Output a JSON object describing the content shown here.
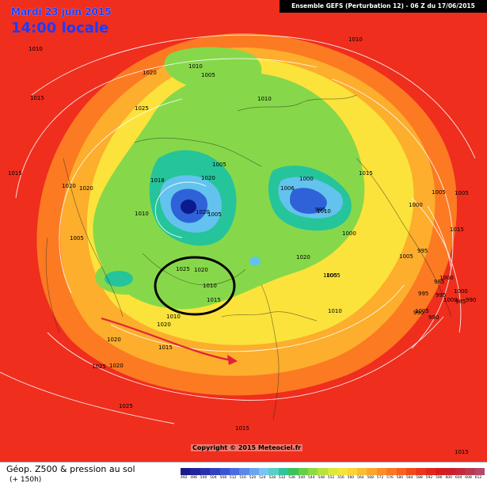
{
  "header": {
    "date": "Mardi 23 juin 2015",
    "time": "14:00 locale",
    "run_info": "Ensemble GEFS  (Perturbation 12)  -  06 Z du 17/06/2015"
  },
  "footer": {
    "map_title": "Géop. Z500 & pression au sol",
    "lead_time": "(+ 150h)",
    "credit": "Copyright © 2015 Meteociel.fr"
  },
  "colors": {
    "ring_outer": "#ef2e1e",
    "ring_orange": "#fc7a22",
    "ring_amber": "#fcae2c",
    "ring_yellow": "#fbe33b",
    "ring_green": "#86d84a",
    "ring_teal": "#26c49a",
    "ring_lightblue": "#63c3ee",
    "ring_blue": "#2f62d8",
    "low_core": "#0b1b8c",
    "annotation": "#000000",
    "arrow": "#e0213a"
  },
  "scale_labels": [
    "492",
    "496",
    "500",
    "504",
    "508",
    "512",
    "516",
    "520",
    "524",
    "528",
    "532",
    "536",
    "540",
    "544",
    "548",
    "552",
    "556",
    "560",
    "564",
    "568",
    "572",
    "576",
    "580",
    "584",
    "588",
    "592",
    "596",
    "600",
    "604",
    "608",
    "612"
  ],
  "scale_colors": [
    "#1a1a8c",
    "#23239c",
    "#2a30ae",
    "#3341c0",
    "#3c55d2",
    "#4a6ddf",
    "#5a88e8",
    "#6aa6ef",
    "#7cc3f3",
    "#58cfc7",
    "#2fc49a",
    "#3bc25c",
    "#66cf46",
    "#8edb45",
    "#b8e33e",
    "#dce83a",
    "#f5e43a",
    "#fbd436",
    "#fcbd31",
    "#fca52c",
    "#fc8d27",
    "#fb7623",
    "#f8611f",
    "#f24a1d",
    "#ea361b",
    "#e2261a",
    "#d81c1c",
    "#cc1f2a",
    "#c22a3c",
    "#ba3852",
    "#b44868"
  ],
  "pressure_labels": [
    "1010",
    "1010",
    "1015",
    "1015",
    "1020",
    "1020",
    "1025",
    "1010",
    "1005",
    "1020",
    "1020",
    "1010",
    "1005",
    "1018",
    "1020",
    "1005",
    "1000",
    "1006",
    "1010",
    "1010",
    "1000",
    "995",
    "995",
    "1000",
    "1005",
    "1015",
    "1005",
    "1015",
    "1025",
    "1020",
    "1020",
    "1005",
    "1000",
    "1005",
    "1015",
    "1010",
    "1010",
    "1000",
    "1000",
    "1020",
    "1025",
    "1025",
    "1020",
    "1005",
    "1005",
    "995",
    "995",
    "990",
    "990",
    "985",
    "985",
    "990",
    "1005",
    "1010",
    "1015",
    "1015",
    "1015",
    "1020"
  ]
}
